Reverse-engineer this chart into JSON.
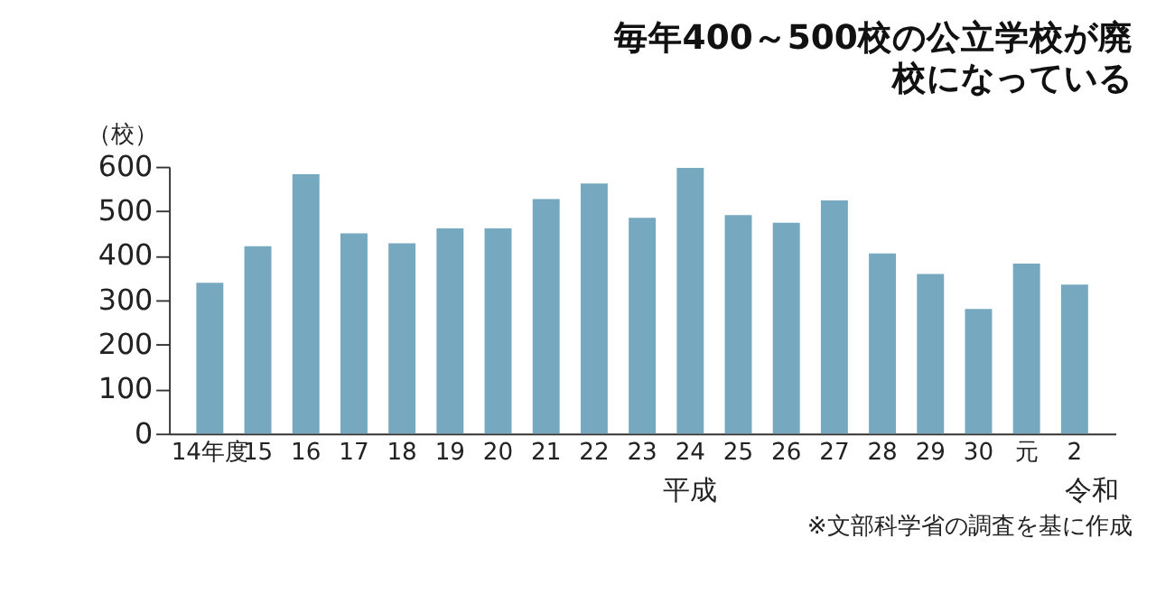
{
  "chart_data": {
    "type": "bar",
    "title": "毎年400～500校の公立学校が廃校になっている",
    "ylabel": "（校）",
    "categories": [
      "14年度",
      "15",
      "16",
      "17",
      "18",
      "19",
      "20",
      "21",
      "22",
      "23",
      "24",
      "25",
      "26",
      "27",
      "28",
      "29",
      "30",
      "元",
      "2"
    ],
    "values": [
      339,
      421,
      583,
      450,
      428,
      461,
      461,
      527,
      562,
      485,
      597,
      491,
      474,
      524,
      405,
      359,
      280,
      382,
      335
    ],
    "color": "#76a9bf",
    "ylim": [
      0,
      600
    ],
    "yticks": [
      0,
      100,
      200,
      300,
      400,
      500,
      600
    ],
    "grid": false,
    "annotations": [
      "平成",
      "令和",
      "※文部科学省の調査を基に作成"
    ]
  }
}
